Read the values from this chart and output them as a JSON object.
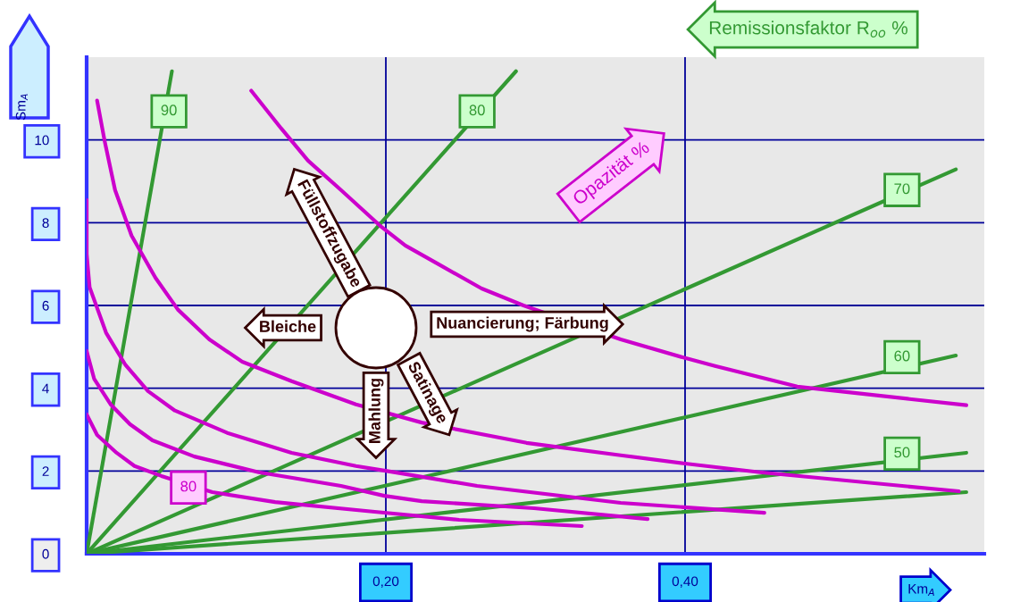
{
  "chart_data": {
    "type": "line",
    "xlabel": "Km$_{A}$",
    "ylabel": "Sm$_{A}$",
    "xlim": [
      0,
      0.6
    ],
    "ylim": [
      0,
      12
    ],
    "xticks": [
      {
        "value": 0.2,
        "label": "0,20"
      },
      {
        "value": 0.4,
        "label": "0,40"
      }
    ],
    "yticks": [
      0,
      2,
      4,
      6,
      8,
      10
    ],
    "grid": true,
    "series": [
      {
        "color": "#339933",
        "x": [
          0,
          0.057
        ],
        "values": [
          0,
          11.66
        ]
      },
      {
        "color": "#339933",
        "x": [
          0,
          0.287
        ],
        "values": [
          0,
          11.66
        ]
      },
      {
        "color": "#339933",
        "x": [
          0,
          0.581
        ],
        "values": [
          0,
          9.29
        ]
      },
      {
        "color": "#339933",
        "x": [
          0,
          0.581
        ],
        "values": [
          0,
          4.79
        ]
      },
      {
        "color": "#339933",
        "x": [
          0,
          0.588
        ],
        "values": [
          0,
          2.44
        ]
      },
      {
        "color": "#339933",
        "x": [
          0,
          0.588
        ],
        "values": [
          0,
          1.49
        ]
      },
      {
        "color": "#cc00cc",
        "x": [
          0.11,
          0.13,
          0.148,
          0.17,
          0.196,
          0.213,
          0.235,
          0.264,
          0.292,
          0.357,
          0.4,
          0.42,
          0.475,
          0.55,
          0.588
        ],
        "values": [
          11.19,
          10.28,
          9.5,
          8.79,
          7.93,
          7.45,
          7.0,
          6.41,
          6.0,
          5.18,
          4.73,
          4.54,
          4.04,
          3.74,
          3.59
        ]
      },
      {
        "color": "#cc00cc",
        "x": [
          0.007,
          0.012,
          0.019,
          0.03,
          0.046,
          0.061,
          0.082,
          0.104,
          0.137,
          0.18,
          0.224,
          0.294,
          0.357,
          0.4,
          0.45,
          0.583
        ],
        "values": [
          10.95,
          9.98,
          8.79,
          7.69,
          6.67,
          5.9,
          5.18,
          4.64,
          4.17,
          3.61,
          3.17,
          2.68,
          2.38,
          2.18,
          1.97,
          1.51
        ]
      },
      {
        "color": "#cc00cc",
        "x": [
          0,
          0,
          0.002,
          0.013,
          0.026,
          0.041,
          0.059,
          0.094,
          0.137,
          0.18,
          0.199,
          0.261,
          0.357,
          0.453
        ],
        "values": [
          8.55,
          7.24,
          6.44,
          5.34,
          4.56,
          3.93,
          3.46,
          2.92,
          2.44,
          2.12,
          2.01,
          1.64,
          1.23,
          0.99
        ]
      },
      {
        "color": "#cc00cc",
        "x": [
          0,
          0.005,
          0.016,
          0.029,
          0.044,
          0.072,
          0.115,
          0.17,
          0.199,
          0.224,
          0.299,
          0.375
        ],
        "values": [
          4.9,
          4.23,
          3.61,
          3.13,
          2.74,
          2.35,
          1.97,
          1.64,
          1.4,
          1.27,
          1.1,
          0.84
        ]
      },
      {
        "color": "#cc00cc",
        "x": [
          0,
          0.007,
          0.02,
          0.032,
          0.05,
          0.084,
          0.126,
          0.191,
          0.249,
          0.331
        ],
        "values": [
          3.37,
          2.87,
          2.44,
          2.12,
          1.88,
          1.49,
          1.25,
          1.02,
          0.82,
          0.67
        ]
      }
    ],
    "annotations": [
      "Remissionsfaktor R$_{oo}$ %",
      "Opazität %",
      "Füllstoffzugabe",
      "Bleiche",
      "Nuancierung; Färbung",
      "Satinage",
      "Mahlung",
      {
        "text": "90",
        "x": 0.055,
        "y": 10.69
      },
      {
        "text": "80",
        "x": 0.261,
        "y": 10.69
      },
      {
        "text": "70",
        "x": 0.545,
        "y": 8.79
      },
      {
        "text": "60",
        "x": 0.545,
        "y": 4.75
      },
      {
        "text": "50",
        "x": 0.545,
        "y": 2.42
      },
      {
        "text": "80",
        "x": 0.068,
        "y": 1.6
      }
    ]
  }
}
